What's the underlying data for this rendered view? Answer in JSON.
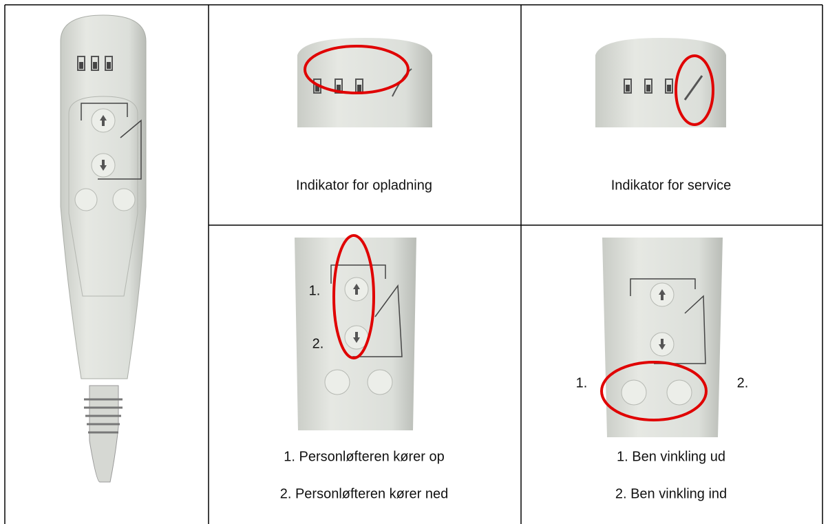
{
  "table": {
    "rows": [
      {
        "cells": [
          {
            "caption": "Indikator for opladning"
          },
          {
            "caption": "Indikator for service"
          }
        ]
      },
      {
        "cells": [
          {
            "image_labels": [
              "1.",
              "2."
            ],
            "captions": [
              "1. Personløfteren kører op",
              "2. Personløfteren kører ned"
            ]
          },
          {
            "image_labels": [
              "1.",
              "2."
            ],
            "captions": [
              "1. Ben vinkling ud",
              "2. Ben vinkling ind"
            ]
          }
        ]
      }
    ]
  }
}
